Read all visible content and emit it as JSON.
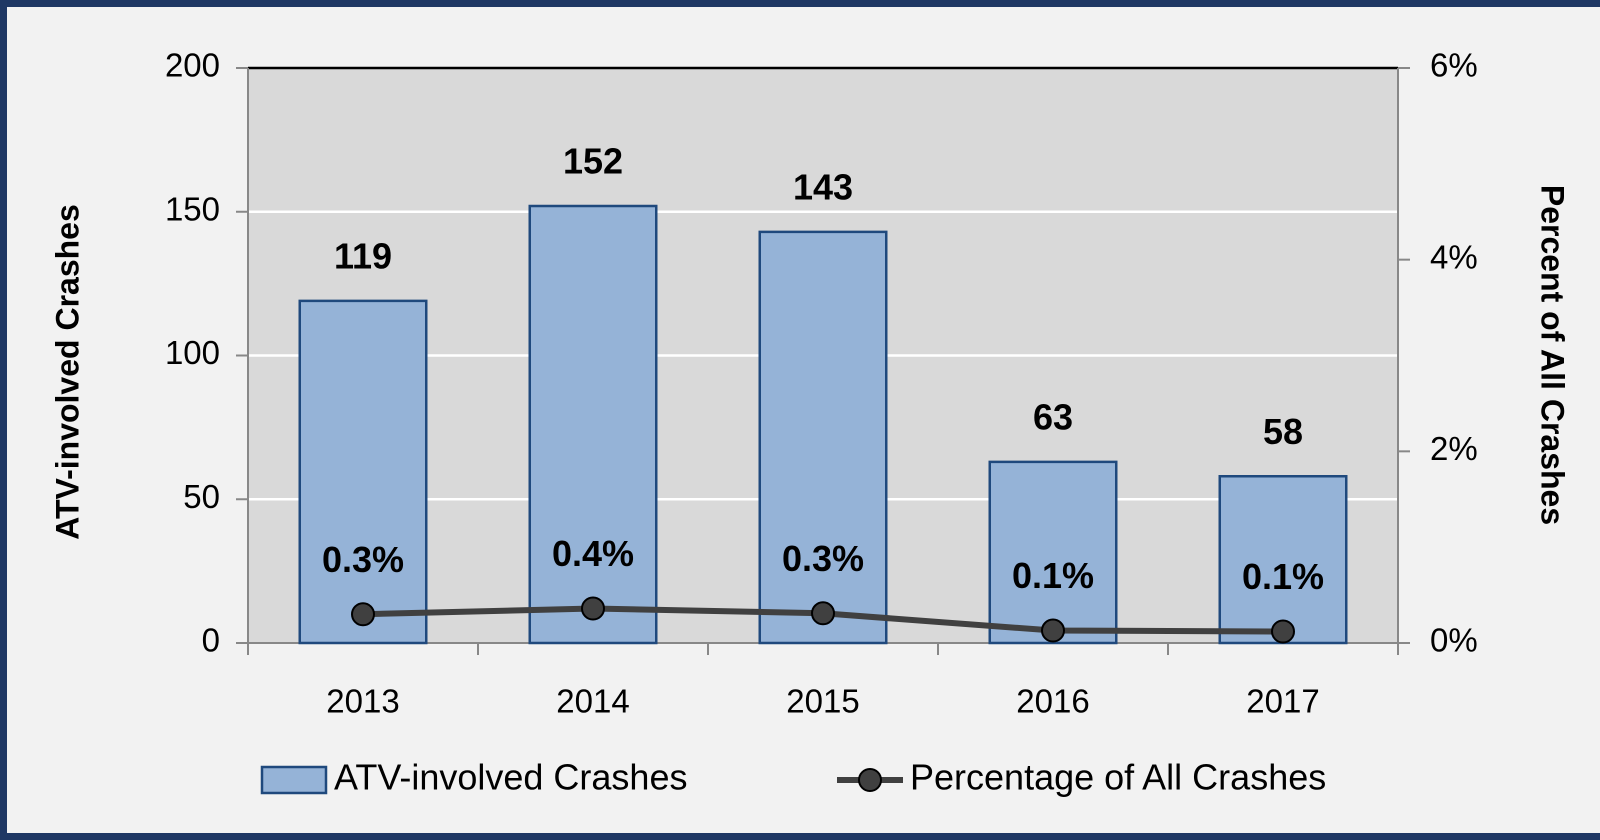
{
  "chart_data": {
    "type": "bar",
    "categories": [
      "2013",
      "2014",
      "2015",
      "2016",
      "2017"
    ],
    "y_label": "ATV-involved Crashes",
    "y2_label": "Percent of All Crashes",
    "ylim": [
      0,
      200
    ],
    "yticks": [
      0,
      50,
      100,
      150,
      200
    ],
    "y2lim": [
      0,
      6
    ],
    "y2ticks": [
      {
        "value": 0,
        "label": "0%"
      },
      {
        "value": 2,
        "label": "2%"
      },
      {
        "value": 4,
        "label": "4%"
      },
      {
        "value": 6,
        "label": "6%"
      }
    ],
    "grid": true,
    "legend": "bottom",
    "series": [
      {
        "name": "ATV-involved Crashes",
        "type": "bar",
        "color": "#95b3d7",
        "values": [
          119,
          152,
          143,
          63,
          58
        ]
      },
      {
        "name": "Percentage of All Crashes",
        "type": "line",
        "axis": "y2",
        "color": "#404040",
        "values": [
          0.3,
          0.36,
          0.31,
          0.13,
          0.12
        ],
        "value_labels": [
          "0.3%",
          "0.4%",
          "0.3%",
          "0.1%",
          "0.1%"
        ]
      }
    ]
  }
}
